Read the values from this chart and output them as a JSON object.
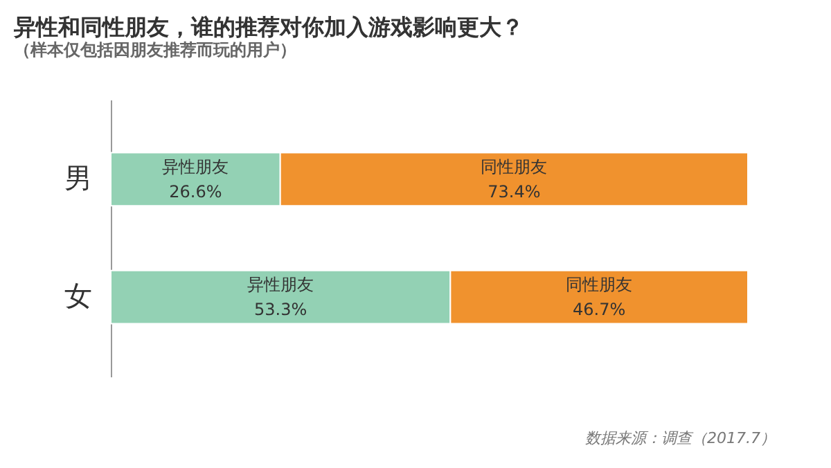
{
  "chart_data": {
    "type": "bar",
    "orientation": "horizontal",
    "stacked": true,
    "title": "异性和同性朋友，谁的推荐对你加入游戏影响更大？",
    "subtitle": "（样本仅包括因朋友推荐而玩的用户）",
    "categories": [
      "男",
      "女"
    ],
    "series": [
      {
        "name": "异性朋友",
        "color": "#93d1b4",
        "values": [
          26.6,
          53.3
        ],
        "value_labels": [
          "26.6%",
          "53.3%"
        ]
      },
      {
        "name": "同性朋友",
        "color": "#f0922e",
        "values": [
          73.4,
          46.7
        ],
        "value_labels": [
          "73.4%",
          "46.7%"
        ]
      }
    ],
    "tick_labels": "y",
    "legend": false,
    "annotations": [
      "数据来源：调查（2017.7）"
    ]
  }
}
